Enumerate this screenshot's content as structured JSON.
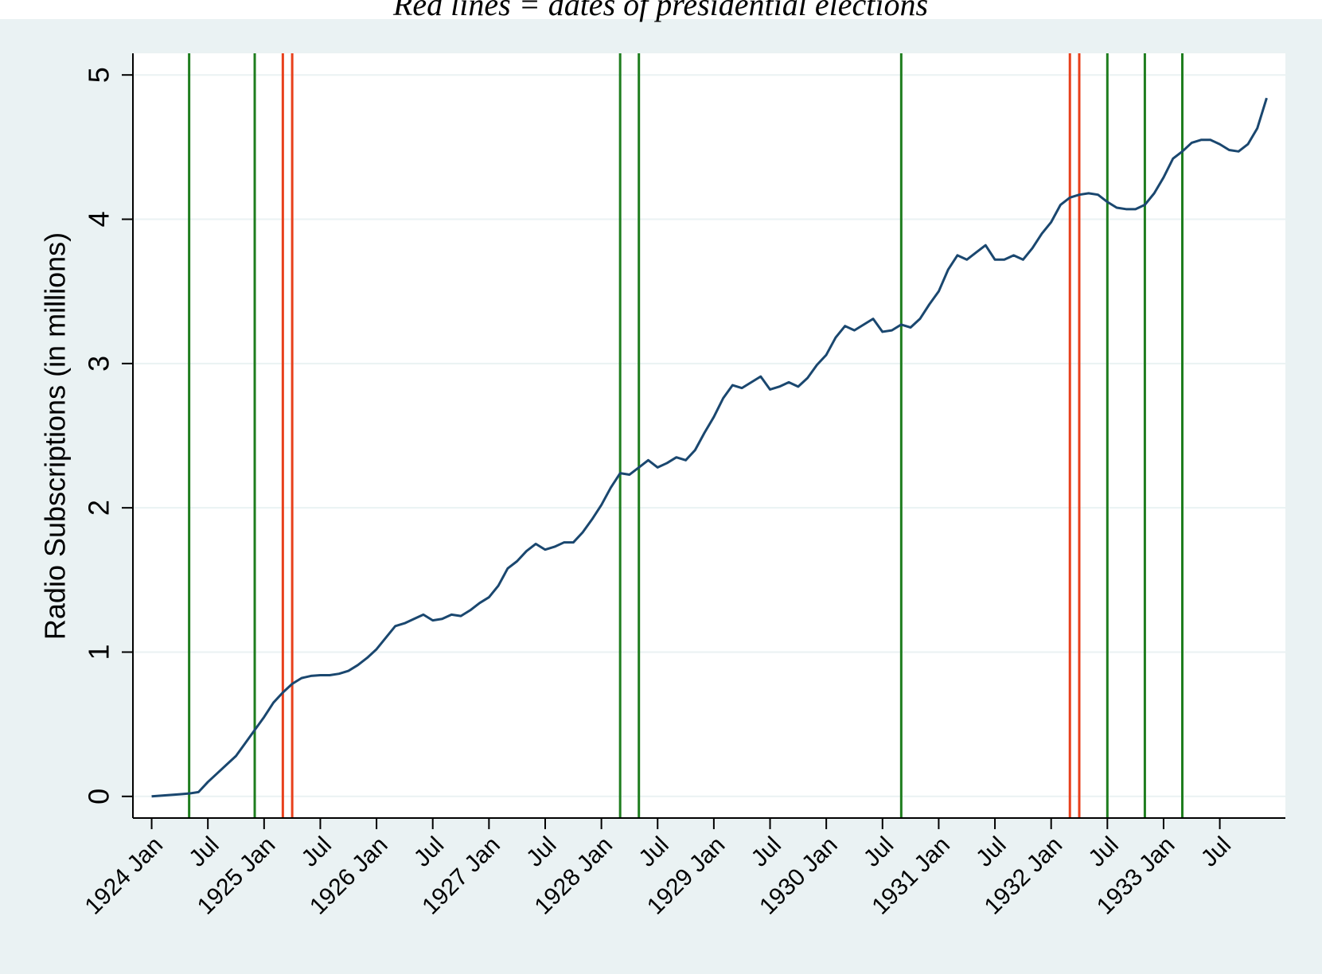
{
  "chart_data": {
    "type": "line",
    "title": "Red lines = dates of presidential elections",
    "y_label": "Radio Subscriptions (in millions)",
    "x": [
      "1924-01",
      "1924-02",
      "1924-03",
      "1924-04",
      "1924-05",
      "1924-06",
      "1924-07",
      "1924-08",
      "1924-09",
      "1924-10",
      "1924-11",
      "1924-12",
      "1925-01",
      "1925-02",
      "1925-03",
      "1925-04",
      "1925-05",
      "1925-06",
      "1925-07",
      "1925-08",
      "1925-09",
      "1925-10",
      "1925-11",
      "1925-12",
      "1926-01",
      "1926-02",
      "1926-03",
      "1926-04",
      "1926-05",
      "1926-06",
      "1926-07",
      "1926-08",
      "1926-09",
      "1926-10",
      "1926-11",
      "1926-12",
      "1927-01",
      "1927-02",
      "1927-03",
      "1927-04",
      "1927-05",
      "1927-06",
      "1927-07",
      "1927-08",
      "1927-09",
      "1927-10",
      "1927-11",
      "1927-12",
      "1928-01",
      "1928-02",
      "1928-03",
      "1928-04",
      "1928-05",
      "1928-06",
      "1928-07",
      "1928-08",
      "1928-09",
      "1928-10",
      "1928-11",
      "1928-12",
      "1929-01",
      "1929-02",
      "1929-03",
      "1929-04",
      "1929-05",
      "1929-06",
      "1929-07",
      "1929-08",
      "1929-09",
      "1929-10",
      "1929-11",
      "1929-12",
      "1930-01",
      "1930-02",
      "1930-03",
      "1930-04",
      "1930-05",
      "1930-06",
      "1930-07",
      "1930-08",
      "1930-09",
      "1930-10",
      "1930-11",
      "1930-12",
      "1931-01",
      "1931-02",
      "1931-03",
      "1931-04",
      "1931-05",
      "1931-06",
      "1931-07",
      "1931-08",
      "1931-09",
      "1931-10",
      "1931-11",
      "1931-12",
      "1932-01",
      "1932-02",
      "1932-03",
      "1932-04",
      "1932-05",
      "1932-06",
      "1932-07",
      "1932-08",
      "1932-09",
      "1932-10",
      "1932-11",
      "1932-12",
      "1933-01",
      "1933-02",
      "1933-03",
      "1933-04",
      "1933-05",
      "1933-06",
      "1933-07",
      "1933-08",
      "1933-09",
      "1933-10",
      "1933-11",
      "1933-12"
    ],
    "series": [
      {
        "color": "#1a476f",
        "values": [
          0,
          0.005,
          0.01,
          0.015,
          0.02,
          0.03,
          0.1,
          0.16,
          0.22,
          0.28,
          0.37,
          0.46,
          0.55,
          0.65,
          0.72,
          0.78,
          0.82,
          0.835,
          0.84,
          0.84,
          0.85,
          0.87,
          0.91,
          0.96,
          1.02,
          1.1,
          1.18,
          1.2,
          1.23,
          1.26,
          1.22,
          1.23,
          1.26,
          1.25,
          1.29,
          1.34,
          1.38,
          1.46,
          1.58,
          1.63,
          1.7,
          1.75,
          1.71,
          1.73,
          1.76,
          1.76,
          1.83,
          1.92,
          2.02,
          2.14,
          2.24,
          2.23,
          2.28,
          2.33,
          2.28,
          2.31,
          2.35,
          2.33,
          2.4,
          2.52,
          2.63,
          2.76,
          2.85,
          2.83,
          2.87,
          2.91,
          2.82,
          2.84,
          2.87,
          2.84,
          2.9,
          2.99,
          3.06,
          3.18,
          3.26,
          3.23,
          3.27,
          3.31,
          3.22,
          3.23,
          3.27,
          3.25,
          3.31,
          3.41,
          3.5,
          3.65,
          3.75,
          3.72,
          3.77,
          3.82,
          3.72,
          3.72,
          3.75,
          3.72,
          3.8,
          3.9,
          3.98,
          4.1,
          4.15,
          4.17,
          4.18,
          4.17,
          4.12,
          4.08,
          4.07,
          4.07,
          4.1,
          4.18,
          4.29,
          4.42,
          4.47,
          4.53,
          4.55,
          4.55,
          4.52,
          4.48,
          4.47,
          4.52,
          4.63,
          4.84
        ]
      }
    ],
    "reference_lines": [
      {
        "x": "1924-05",
        "color": "#1e7d1e"
      },
      {
        "x": "1924-12",
        "color": "#1e7d1e"
      },
      {
        "x": "1925-03",
        "color": "#e8401c"
      },
      {
        "x": "1925-04",
        "color": "#e8401c"
      },
      {
        "x": "1928-03",
        "color": "#1e7d1e"
      },
      {
        "x": "1928-05",
        "color": "#1e7d1e"
      },
      {
        "x": "1930-09",
        "color": "#1e7d1e"
      },
      {
        "x": "1932-03",
        "color": "#e8401c"
      },
      {
        "x": "1932-04",
        "color": "#e8401c"
      },
      {
        "x": "1932-07",
        "color": "#1e7d1e"
      },
      {
        "x": "1932-11",
        "color": "#1e7d1e"
      },
      {
        "x": "1933-03",
        "color": "#1e7d1e"
      }
    ],
    "xlim": [
      "1923-11",
      "1934-02"
    ],
    "xticks": [
      {
        "value": "1924-01",
        "label": "1924 Jan"
      },
      {
        "value": "1924-07",
        "label": "Jul"
      },
      {
        "value": "1925-01",
        "label": "1925 Jan"
      },
      {
        "value": "1925-07",
        "label": "Jul"
      },
      {
        "value": "1926-01",
        "label": "1926 Jan"
      },
      {
        "value": "1926-07",
        "label": "Jul"
      },
      {
        "value": "1927-01",
        "label": "1927 Jan"
      },
      {
        "value": "1927-07",
        "label": "Jul"
      },
      {
        "value": "1928-01",
        "label": "1928 Jan"
      },
      {
        "value": "1928-07",
        "label": "Jul"
      },
      {
        "value": "1929-01",
        "label": "1929 Jan"
      },
      {
        "value": "1929-07",
        "label": "Jul"
      },
      {
        "value": "1930-01",
        "label": "1930 Jan"
      },
      {
        "value": "1930-07",
        "label": "Jul"
      },
      {
        "value": "1931-01",
        "label": "1931 Jan"
      },
      {
        "value": "1931-07",
        "label": "Jul"
      },
      {
        "value": "1932-01",
        "label": "1932 Jan"
      },
      {
        "value": "1932-07",
        "label": "Jul"
      },
      {
        "value": "1933-01",
        "label": "1933 Jan"
      },
      {
        "value": "1933-07",
        "label": "Jul"
      }
    ],
    "ylim": [
      -0.15,
      5.15
    ],
    "yticks": [
      0,
      1,
      2,
      3,
      4,
      5
    ],
    "grid": true
  }
}
